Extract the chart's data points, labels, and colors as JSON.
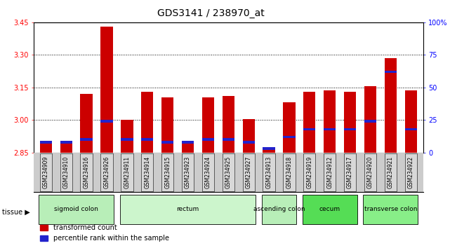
{
  "title": "GDS3141 / 238970_at",
  "samples": [
    "GSM234909",
    "GSM234910",
    "GSM234916",
    "GSM234926",
    "GSM234911",
    "GSM234914",
    "GSM234915",
    "GSM234923",
    "GSM234924",
    "GSM234925",
    "GSM234927",
    "GSM234913",
    "GSM234918",
    "GSM234919",
    "GSM234912",
    "GSM234917",
    "GSM234920",
    "GSM234921",
    "GSM234922"
  ],
  "red_values": [
    2.895,
    2.895,
    3.12,
    3.43,
    3.0,
    3.13,
    3.105,
    2.895,
    3.105,
    3.11,
    3.005,
    2.87,
    3.08,
    3.13,
    3.135,
    3.13,
    3.155,
    3.285,
    3.135
  ],
  "blue_pct": [
    8,
    8,
    10,
    24,
    10,
    10,
    8,
    8,
    10,
    10,
    8,
    3,
    12,
    18,
    18,
    18,
    24,
    62,
    18
  ],
  "y_min": 2.85,
  "y_max": 3.45,
  "y_ticks": [
    2.85,
    3.0,
    3.15,
    3.3,
    3.45
  ],
  "y2_ticks": [
    0,
    25,
    50,
    75,
    100
  ],
  "tissue_groups": [
    {
      "label": "sigmoid colon",
      "start": 0,
      "end": 3,
      "color": "#b8eeb8"
    },
    {
      "label": "rectum",
      "start": 4,
      "end": 10,
      "color": "#ccf5cc"
    },
    {
      "label": "ascending colon",
      "start": 11,
      "end": 12,
      "color": "#b8eeb8"
    },
    {
      "label": "cecum",
      "start": 13,
      "end": 15,
      "color": "#55dd55"
    },
    {
      "label": "transverse colon",
      "start": 16,
      "end": 18,
      "color": "#88ee88"
    }
  ],
  "bar_color": "#cc0000",
  "blue_color": "#2222cc",
  "bar_width": 0.6,
  "baseline": 2.85
}
